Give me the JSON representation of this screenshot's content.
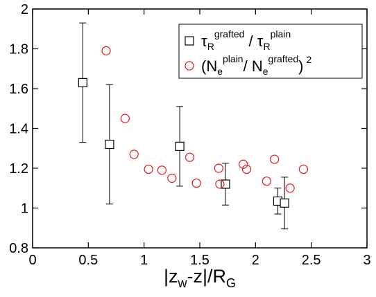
{
  "chart_data": {
    "type": "scatter",
    "xlabel": [
      "|z",
      "w",
      "-z|/R",
      "G"
    ],
    "xlim": [
      0,
      3
    ],
    "xticks": [
      0,
      0.5,
      1,
      1.5,
      2,
      2.5,
      3
    ],
    "ylim": [
      0.8,
      2
    ],
    "yticks": [
      0.8,
      1,
      1.2,
      1.4,
      1.6,
      1.8,
      2
    ],
    "series": [
      {
        "name": [
          "τ",
          "R",
          "grafted",
          " / τ",
          "R",
          "plain"
        ],
        "color": "#000000",
        "marker": "square",
        "x": [
          0.45,
          0.69,
          1.32,
          1.73,
          2.2,
          2.26
        ],
        "values": [
          1.63,
          1.32,
          1.31,
          1.12,
          1.035,
          1.025
        ],
        "errors": [
          0.3,
          0.3,
          0.2,
          0.105,
          0.065,
          0.13
        ]
      },
      {
        "name": [
          "(N",
          "e",
          "plain",
          "/ N",
          "e",
          "grafted",
          ")",
          "2"
        ],
        "color": "#e8141a",
        "marker": "circle",
        "x": [
          0.66,
          0.83,
          0.91,
          1.04,
          1.16,
          1.25,
          1.41,
          1.47,
          1.67,
          1.68,
          1.89,
          1.92,
          2.1,
          2.17,
          2.31,
          2.43
        ],
        "values": [
          1.79,
          1.45,
          1.27,
          1.195,
          1.19,
          1.15,
          1.255,
          1.125,
          1.2,
          1.12,
          1.22,
          1.195,
          1.135,
          1.245,
          1.1,
          1.195
        ]
      }
    ]
  }
}
